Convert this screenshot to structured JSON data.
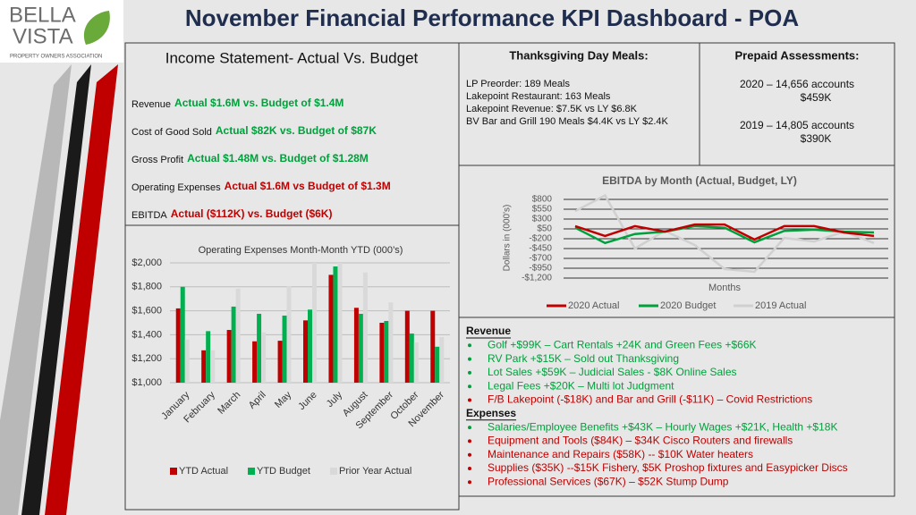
{
  "header": {
    "logo": {
      "line1": "BELLA",
      "line2": "VISTA",
      "tagline": "PROPERTY OWNERS ASSOCIATION"
    },
    "title": "November Financial Performance KPI Dashboard - POA"
  },
  "income_statement": {
    "title": "Income Statement- Actual Vs. Budget",
    "rows": [
      {
        "label": "Revenue",
        "value": "Actual $1.6M vs. Budget of $1.4M",
        "color": "#00a03c"
      },
      {
        "label": "Cost of Good Sold",
        "value": "Actual $82K vs. Budget of $87K",
        "color": "#00a03c"
      },
      {
        "label": "Gross Profit",
        "value": "Actual $1.48M  vs. Budget of $1.28M",
        "color": "#00a03c"
      },
      {
        "label": "Operating Expenses",
        "value": "Actual $1.6M vs Budget of $1.3M",
        "color": "#c00000"
      },
      {
        "label": "EBITDA",
        "value": "Actual ($112K)  vs. Budget ($6K)",
        "color": "#c00000"
      }
    ]
  },
  "thanksgiving": {
    "title": "Thanksgiving Day Meals:",
    "lines": [
      "LP Preorder:  189 Meals",
      "Lakepoint Restaurant:  163 Meals",
      "Lakepoint Revenue: $7.5K vs LY $6.8K",
      "BV Bar and Grill 190 Meals  $4.4K vs LY $2.4K"
    ]
  },
  "prepaid": {
    "title": "Prepaid Assessments:",
    "lines": [
      "2020 – 14,656 accounts",
      "$459K",
      "2019 – 14,805 accounts",
      "$390K"
    ]
  },
  "chart_data": [
    {
      "type": "bar",
      "title": "Operating Expenses Month-Month YTD (000’s)",
      "categories": [
        "January",
        "February",
        "March",
        "April",
        "May",
        "June",
        "July",
        "August",
        "September",
        "October",
        "November"
      ],
      "series": [
        {
          "name": "YTD Actual",
          "color": "#c00000",
          "values": [
            1620,
            1270,
            1440,
            1345,
            1350,
            1520,
            1900,
            1625,
            1500,
            1600,
            1600
          ]
        },
        {
          "name": "YTD Budget",
          "color": "#00b050",
          "values": [
            1800,
            1430,
            1635,
            1575,
            1560,
            1610,
            1970,
            1575,
            1515,
            1410,
            1300
          ]
        },
        {
          "name": "Prior Year Actual",
          "color": "#d9d9d9",
          "values": [
            1360,
            1270,
            1785,
            1420,
            1805,
            2000,
            2000,
            1920,
            1670,
            1335,
            1380
          ]
        }
      ],
      "ylim": [
        1000,
        2000
      ],
      "yticks": [
        {
          "value": 1000,
          "label": "$1,000"
        },
        {
          "value": 1200,
          "label": "$1,200"
        },
        {
          "value": 1400,
          "label": "$1,400"
        },
        {
          "value": 1600,
          "label": "$1,600"
        },
        {
          "value": 1800,
          "label": "$1,800"
        },
        {
          "value": 2000,
          "label": "$2,000"
        }
      ],
      "grid": true,
      "legend": "bottom"
    },
    {
      "type": "line",
      "title": "EBITDA by  Month (Actual, Budget, LY)",
      "y_label": "Dollars in (000's)",
      "x_label": "Months",
      "categories": [
        null,
        null,
        null,
        null,
        null,
        null,
        null,
        null,
        null,
        null,
        null
      ],
      "series": [
        {
          "name": "2020 Actual",
          "color": "#c00000",
          "values": [
            120,
            -130,
            120,
            -20,
            160,
            160,
            -220,
            120,
            120,
            -40,
            -130
          ]
        },
        {
          "name": "2020 Budget",
          "color": "#00a03c",
          "values": [
            80,
            -310,
            -80,
            -20,
            120,
            80,
            -290,
            0,
            30,
            -20,
            -40
          ]
        },
        {
          "name": "2019 Actual",
          "color": "#d0d0d0",
          "values": [
            500,
            900,
            -450,
            0,
            -360,
            -970,
            -1040,
            -180,
            -270,
            -20,
            -310
          ]
        }
      ],
      "ylim": [
        -1200,
        800
      ],
      "yticks": [
        {
          "value": 800,
          "label": "$800"
        },
        {
          "value": 550,
          "label": "$550"
        },
        {
          "value": 300,
          "label": "$300"
        },
        {
          "value": 50,
          "label": "$50"
        },
        {
          "value": -200,
          "label": "-$200"
        },
        {
          "value": -450,
          "label": "-$450"
        },
        {
          "value": -700,
          "label": "-$700"
        },
        {
          "value": -950,
          "label": "-$950"
        },
        {
          "value": -1200,
          "label": "-$1,200"
        }
      ],
      "grid": true,
      "legend": "bottom"
    }
  ],
  "notes": {
    "sections": [
      {
        "heading": "Revenue",
        "items": [
          {
            "text": "Golf +$99K – Cart Rentals +24K and Green Fees +$66K",
            "color": "#00a03c"
          },
          {
            "text": "RV Park +$15K – Sold out Thanksgiving",
            "color": "#00a03c"
          },
          {
            "text": "Lot Sales  +$59K – Judicial Sales - $8K Online Sales",
            "color": "#00a03c"
          },
          {
            "text": "Legal Fees +$20K –  Multi lot Judgment",
            "color": "#00a03c"
          },
          {
            "text": "F/B Lakepoint (-$18K) and Bar and Grill (-$11K) – Covid Restrictions",
            "color": "#c00000"
          }
        ]
      },
      {
        "heading": "Expenses",
        "items": [
          {
            "text": "Salaries/Employee Benefits  +$43K – Hourly Wages +$21K, Health +$18K",
            "color": "#00a03c"
          },
          {
            "text": "Equipment and Tools  ($84K) – $34K Cisco Routers and firewalls",
            "color": "#c00000"
          },
          {
            "text": "Maintenance and Repairs  ($58K) -- $10K Water heaters",
            "color": "#c00000"
          },
          {
            "text": "Supplies  ($35K) --$15K Fishery, $5K Proshop fixtures and Easypicker Discs",
            "color": "#c00000"
          },
          {
            "text": "Professional Services  ($67K) – $52K Stump Dump",
            "color": "#c00000"
          }
        ]
      }
    ]
  }
}
